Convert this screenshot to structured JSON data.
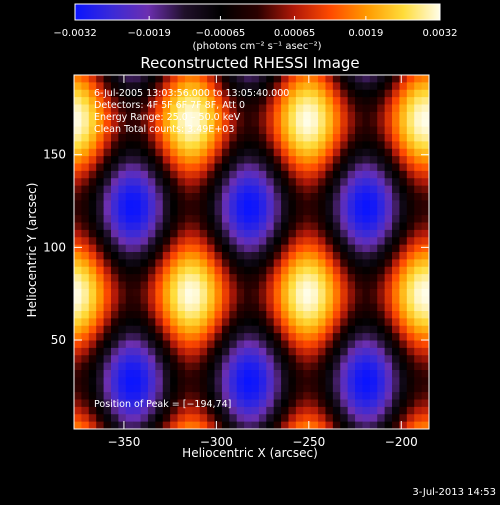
{
  "chart_data": {
    "type": "heatmap",
    "title": "Reconstructed RHESSI Image",
    "xlabel": "Heliocentric X (arcsec)",
    "ylabel": "Heliocentric Y (arcsec)",
    "xlim": [
      -377,
      -185
    ],
    "ylim": [
      2,
      193
    ],
    "x_ticks": [
      -350,
      -300,
      -250,
      -200
    ],
    "x_tick_labels": [
      "−350",
      "−300",
      "−250",
      "−200"
    ],
    "y_ticks": [
      50,
      100,
      150
    ],
    "y_tick_labels": [
      "50",
      "100",
      "150"
    ],
    "colorbar": {
      "range": [
        -0.0032,
        0.0032
      ],
      "ticks": [
        -0.0032,
        -0.0019,
        -0.00065,
        0.00065,
        0.0019,
        0.0032
      ],
      "tick_labels": [
        "−0.0032",
        "−0.0019",
        "−0.00065",
        "0.00065",
        "0.0019",
        "0.0032"
      ],
      "unit_label": "(photons cm⁻² s⁻¹ asec⁻²)"
    },
    "pattern": {
      "kx": 0.0497,
      "ky": 0.0334,
      "phase": 0.72,
      "bands_per_axis": 6
    },
    "annotations": {
      "time": "6-Jul-2005 13:03:56.000 to 13:05:40.000",
      "detectors": "Detectors: 4F 5F 6F 7F 8F, Att 0",
      "energy": "Energy Range: 25.0 – 50.0 keV",
      "clean": "Clean     Total counts: 3.49E+03",
      "peak": "Position of Peak = [−194,74]"
    },
    "footer_date": "3-Jul-2013 14:53",
    "colors": {
      "colormap": [
        "#0a14ff",
        "#3a2ad8",
        "#6c2fb0",
        "#20102a",
        "#000000",
        "#2a0000",
        "#b01808",
        "#ff4a00",
        "#ff9a00",
        "#ffdc3a",
        "#fffde8"
      ]
    }
  }
}
